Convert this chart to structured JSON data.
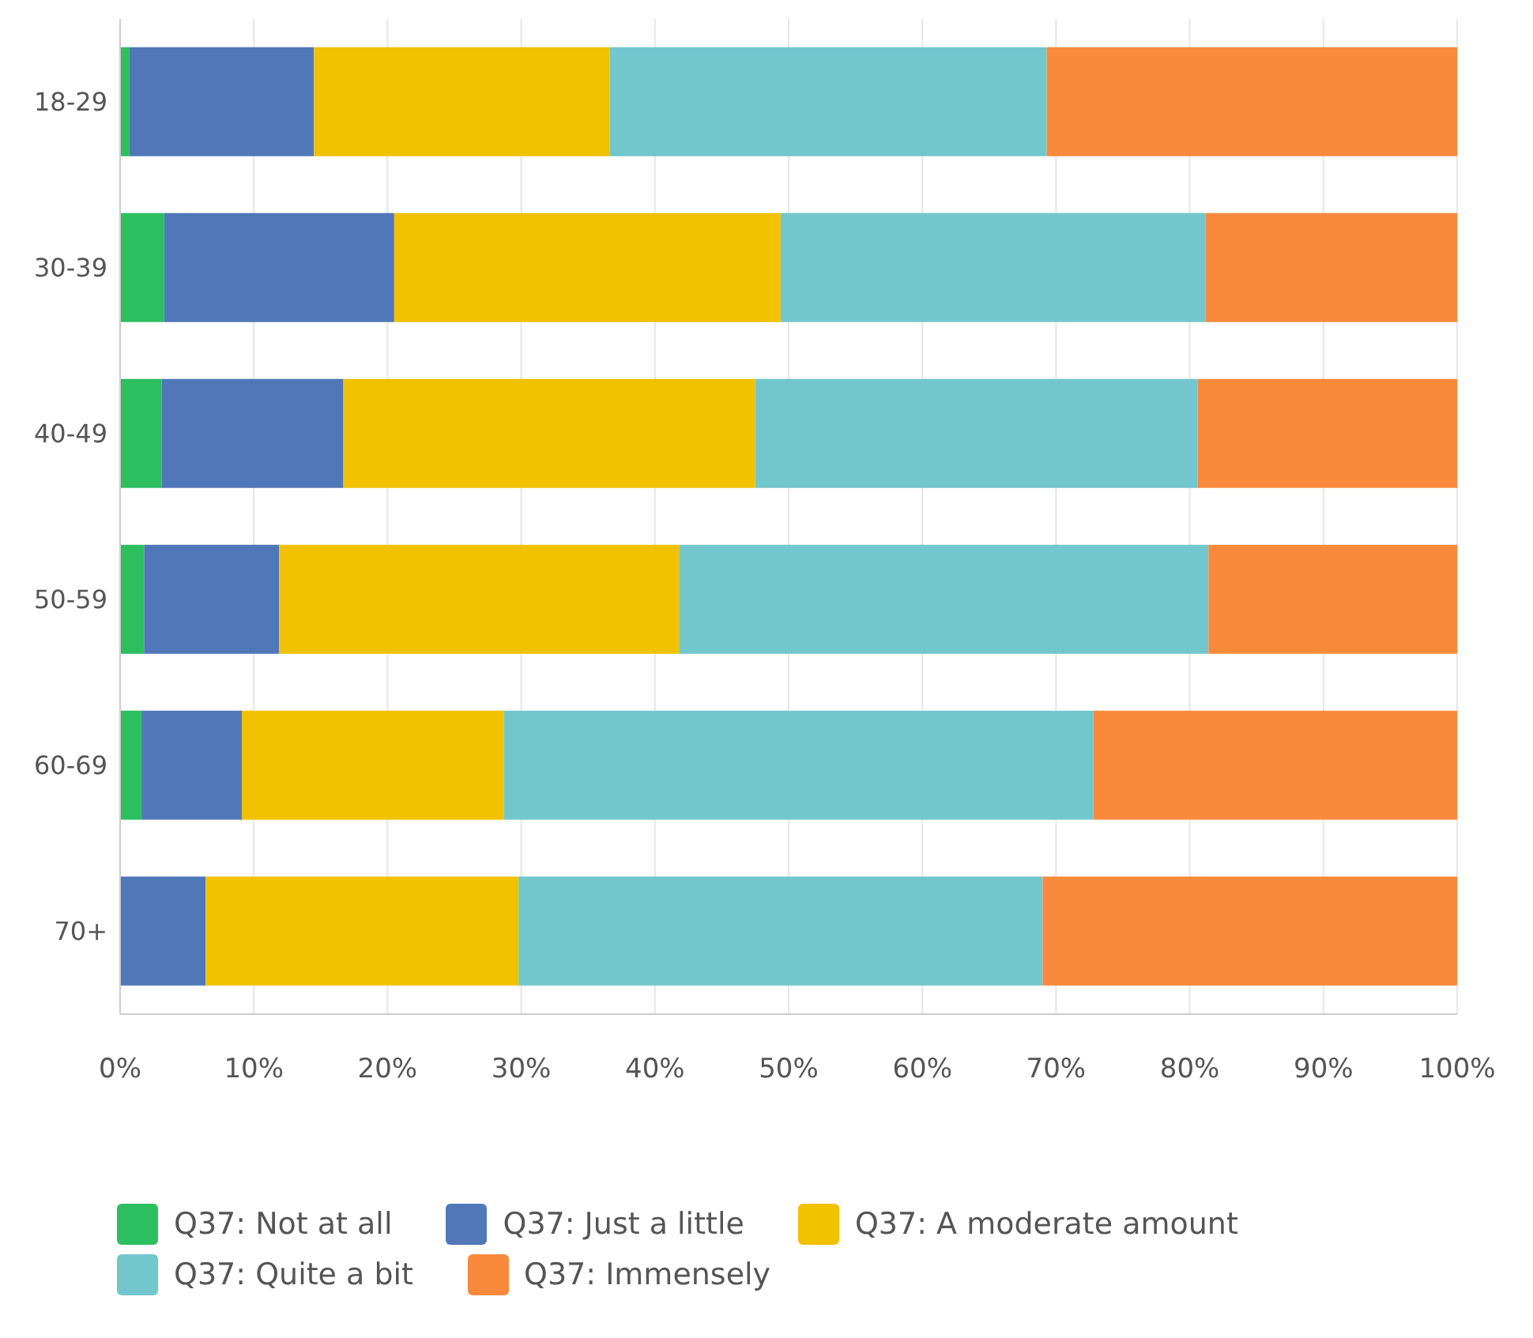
{
  "chart_data": {
    "type": "bar",
    "orientation": "horizontal",
    "stacked": true,
    "categories": [
      "18-29",
      "30-39",
      "40-49",
      "50-59",
      "60-69",
      "70+"
    ],
    "series": [
      {
        "name": "Q37: Not at all",
        "color": "#2dbe60",
        "values": [
          0.7,
          3.3,
          3.1,
          1.8,
          1.6,
          0
        ]
      },
      {
        "name": "Q37: Just a little",
        "color": "#5078b8",
        "values": [
          13.8,
          17.2,
          13.6,
          10.1,
          7.5,
          6.4
        ]
      },
      {
        "name": "Q37: A moderate amount",
        "color": "#f2c100",
        "values": [
          22.1,
          28.9,
          30.8,
          29.9,
          19.6,
          23.4
        ]
      },
      {
        "name": "Q37: Quite a bit",
        "color": "#72c7cd",
        "values": [
          32.7,
          31.8,
          33.1,
          39.6,
          44.1,
          39.2
        ]
      },
      {
        "name": "Q37: Immensely",
        "color": "#f98a3c",
        "values": [
          30.7,
          18.8,
          19.4,
          18.6,
          27.2,
          31.0
        ]
      }
    ],
    "xlim": [
      0,
      100
    ],
    "xticks": [
      {
        "value": 0,
        "label": "0%"
      },
      {
        "value": 10,
        "label": "10%"
      },
      {
        "value": 20,
        "label": "20%"
      },
      {
        "value": 30,
        "label": "30%"
      },
      {
        "value": 40,
        "label": "40%"
      },
      {
        "value": 50,
        "label": "50%"
      },
      {
        "value": 60,
        "label": "60%"
      },
      {
        "value": 70,
        "label": "70%"
      },
      {
        "value": 80,
        "label": "80%"
      },
      {
        "value": 90,
        "label": "90%"
      },
      {
        "value": 100,
        "label": "100%"
      }
    ],
    "grid": "x",
    "legend": "bottom left"
  }
}
